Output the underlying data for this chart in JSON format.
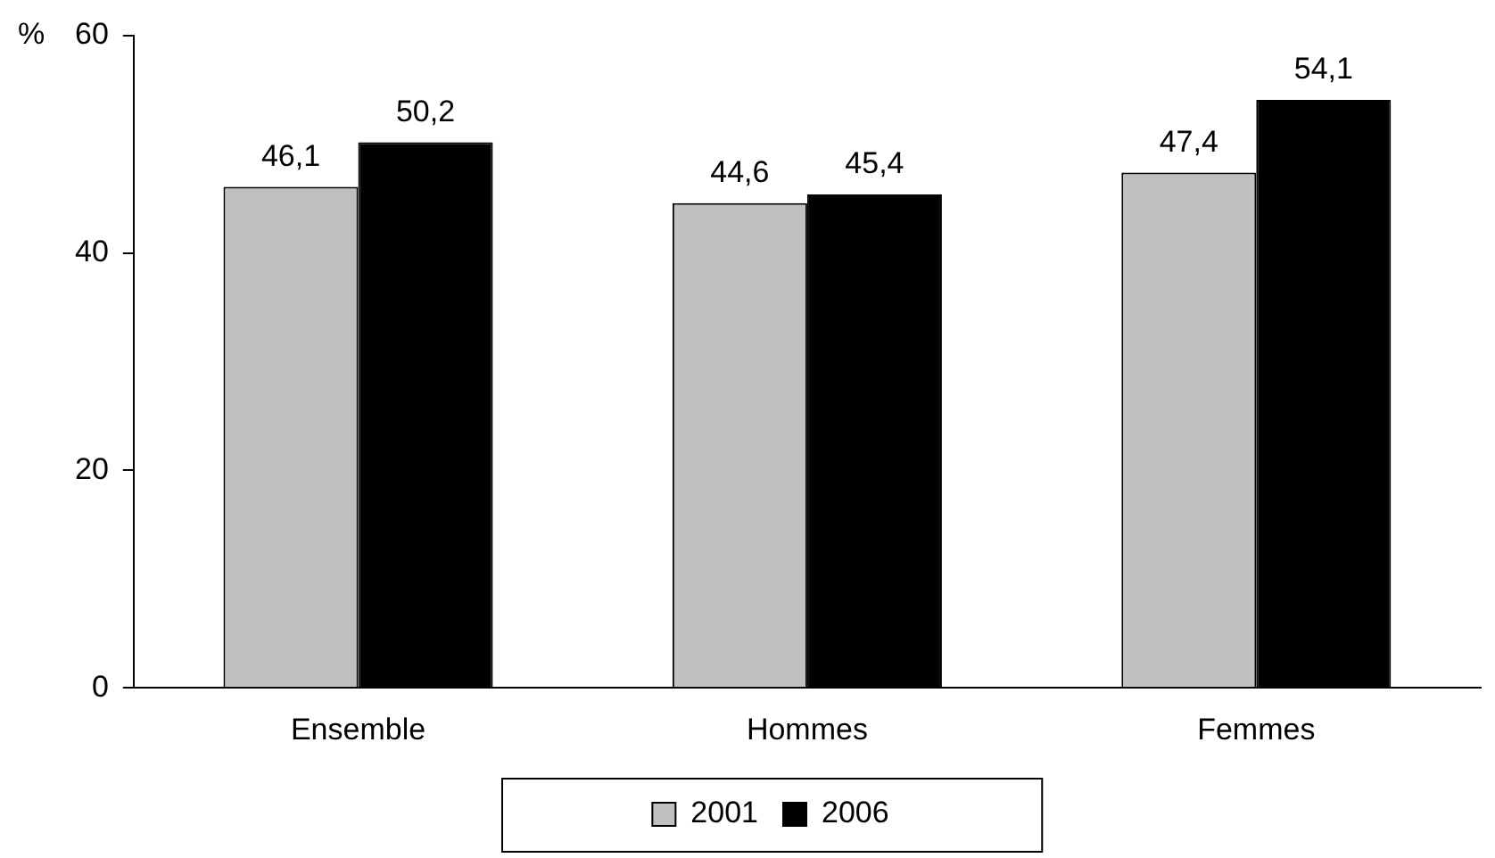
{
  "chart_data": {
    "type": "bar",
    "ylabel": "%",
    "categories": [
      "Ensemble",
      "Hommes",
      "Femmes"
    ],
    "series": [
      {
        "name": "2001",
        "color": "#c0c0c0",
        "values": [
          46.1,
          44.6,
          47.4
        ],
        "value_labels": [
          "46,1",
          "44,6",
          "47,4"
        ]
      },
      {
        "name": "2006",
        "color": "#000000",
        "values": [
          50.2,
          45.4,
          54.1
        ],
        "value_labels": [
          "50,2",
          "45,4",
          "54,1"
        ]
      }
    ],
    "ylim": [
      0,
      60
    ],
    "yticks": [
      0,
      20,
      40,
      60
    ],
    "grid": false,
    "legend": "bottom"
  }
}
